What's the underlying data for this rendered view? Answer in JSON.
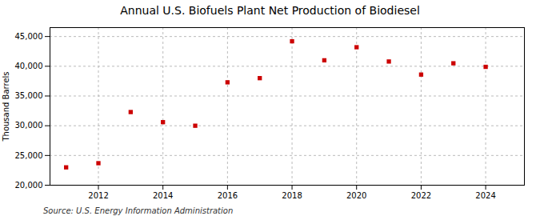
{
  "chart_data": {
    "type": "scatter",
    "title": "Annual U.S. Biofuels Plant Net Production of Biodiesel",
    "ylabel": "Thousand Barrels",
    "source": "Source: U.S. Energy Information Administration",
    "x": [
      2011,
      2012,
      2013,
      2014,
      2015,
      2016,
      2017,
      2018,
      2019,
      2020,
      2021,
      2022,
      2023,
      2024
    ],
    "values": [
      23000,
      23700,
      32300,
      30600,
      30000,
      37300,
      38000,
      44200,
      41000,
      43200,
      40800,
      38600,
      40500,
      39900
    ],
    "color": "#cc0000",
    "marker": "square",
    "xlim": [
      2010.5,
      2025.2
    ],
    "xticks": [
      2012,
      2014,
      2016,
      2018,
      2020,
      2022,
      2024
    ],
    "ylim": [
      20000,
      46500
    ],
    "yticks": [
      {
        "value": 20000,
        "label": "20,000"
      },
      {
        "value": 25000,
        "label": "25,000"
      },
      {
        "value": 30000,
        "label": "30,000"
      },
      {
        "value": 35000,
        "label": "35,000"
      },
      {
        "value": 40000,
        "label": "40,000"
      },
      {
        "value": 45000,
        "label": "45,000"
      }
    ],
    "grid": true
  }
}
